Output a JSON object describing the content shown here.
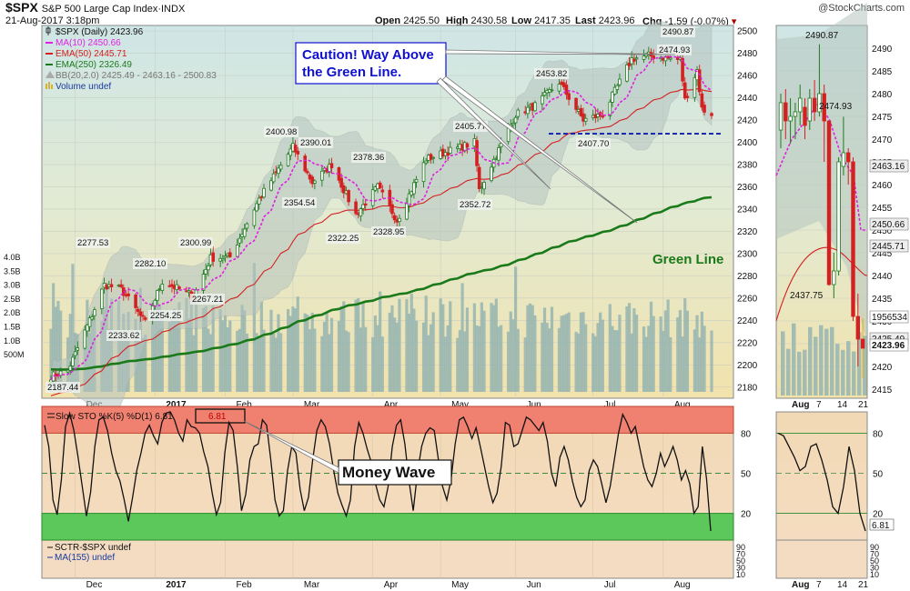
{
  "header": {
    "symbol": "$SPX",
    "name": "S&P 500 Large Cap Index",
    "exchange": "INDX",
    "date": "21-Aug-2017 3:18pm",
    "open_label": "Open",
    "open": "2425.50",
    "high_label": "High",
    "high": "2430.58",
    "low_label": "Low",
    "low": "2417.35",
    "last_label": "Last",
    "last": "2423.96",
    "chg_label": "Chg",
    "chg": "-1.59 (-0.07%)",
    "watermark": "@StockCharts.com"
  },
  "legend": {
    "price": "$SPX (Daily) 2423.96",
    "ma10": "MA(10) 2450.66",
    "ema50": "EMA(50) 2445.71",
    "ema250": "EMA(250) 2326.49",
    "bb": "BB(20,2.0) 2425.49 - 2463.16 - 2500.83",
    "volume": "Volume undef"
  },
  "annotations": {
    "caution_line1": "Caution! Way Above",
    "caution_line2": "the Green Line.",
    "green_line": "Green Line",
    "money_wave": "Money Wave"
  },
  "sto_legend": {
    "main": "Slow STO %K(5) %D(1) 6.81",
    "box": "6.81"
  },
  "sctr_legend": {
    "sctr": "SCTR-$SPX undef",
    "ma": "MA(155) undef"
  },
  "colors": {
    "up": "#1f7a1f",
    "down": "#d42020",
    "ma10": "#e020e0",
    "ema50": "#d42020",
    "ema250": "#1a7a1a",
    "bb_fill": "#b5c4c0",
    "overbought": "#f08070",
    "oversold": "#5cc85c",
    "annotation_blue": "#1010d0",
    "annotation_green": "#1a7a1a"
  },
  "chart_data": [
    {
      "type": "candlestick",
      "title": "$SPX S&P 500 Large Cap Index INDX",
      "ylim": [
        2170,
        2505
      ],
      "y_ticks": [
        2180,
        2200,
        2220,
        2240,
        2260,
        2280,
        2300,
        2320,
        2340,
        2360,
        2380,
        2400,
        2420,
        2440,
        2460,
        2480,
        2500
      ],
      "x_labels": [
        "Dec",
        "2017",
        "Feb",
        "Mar",
        "Apr",
        "May",
        "Jun",
        "Jul",
        "Aug"
      ],
      "volume_ticks": [
        "4.0B",
        "3.5B",
        "3.0B",
        "2.5B",
        "2.0B",
        "1.5B",
        "1.0B",
        "500M"
      ],
      "price_labels": [
        {
          "value": "2187.44"
        },
        {
          "value": "2277.53"
        },
        {
          "value": "2233.62"
        },
        {
          "value": "2282.10"
        },
        {
          "value": "2254.25"
        },
        {
          "value": "2300.99"
        },
        {
          "value": "2267.21"
        },
        {
          "value": "2400.98"
        },
        {
          "value": "2390.01"
        },
        {
          "value": "2354.54"
        },
        {
          "value": "2378.36"
        },
        {
          "value": "2322.25"
        },
        {
          "value": "2328.95"
        },
        {
          "value": "2405.77"
        },
        {
          "value": "2352.72"
        },
        {
          "value": "2453.82"
        },
        {
          "value": "2407.70"
        },
        {
          "value": "2490.87"
        },
        {
          "value": "2474.93"
        }
      ],
      "anchors": [
        {
          "date": "2016-11-21",
          "close": 2190
        },
        {
          "date": "2016-11-28",
          "close": 2195
        },
        {
          "date": "2016-12-08",
          "close": 2245
        },
        {
          "date": "2016-12-13",
          "close": 2272
        },
        {
          "date": "2016-12-20",
          "close": 2268
        },
        {
          "date": "2016-12-30",
          "close": 2238
        },
        {
          "date": "2017-01-06",
          "close": 2275
        },
        {
          "date": "2017-01-19",
          "close": 2262
        },
        {
          "date": "2017-01-26",
          "close": 2296
        },
        {
          "date": "2017-02-03",
          "close": 2297
        },
        {
          "date": "2017-02-15",
          "close": 2349
        },
        {
          "date": "2017-03-01",
          "close": 2396
        },
        {
          "date": "2017-03-09",
          "close": 2364
        },
        {
          "date": "2017-03-17",
          "close": 2380
        },
        {
          "date": "2017-03-27",
          "close": 2335
        },
        {
          "date": "2017-04-05",
          "close": 2360
        },
        {
          "date": "2017-04-13",
          "close": 2330
        },
        {
          "date": "2017-04-25",
          "close": 2385
        },
        {
          "date": "2017-05-15",
          "close": 2400
        },
        {
          "date": "2017-05-17",
          "close": 2357
        },
        {
          "date": "2017-06-01",
          "close": 2425
        },
        {
          "date": "2017-06-09",
          "close": 2433
        },
        {
          "date": "2017-06-19",
          "close": 2454
        },
        {
          "date": "2017-06-29",
          "close": 2420
        },
        {
          "date": "2017-07-07",
          "close": 2425
        },
        {
          "date": "2017-07-19",
          "close": 2475
        },
        {
          "date": "2017-07-26",
          "close": 2478
        },
        {
          "date": "2017-08-08",
          "close": 2474
        },
        {
          "date": "2017-08-10",
          "close": 2438
        },
        {
          "date": "2017-08-15",
          "close": 2465
        },
        {
          "date": "2017-08-17",
          "close": 2430
        },
        {
          "date": "2017-08-21",
          "close": 2424
        }
      ],
      "series": [
        {
          "name": "MA(10)",
          "last": 2450.66
        },
        {
          "name": "EMA(50)",
          "last": 2445.71
        },
        {
          "name": "EMA(250)",
          "last": 2326.49,
          "start": 2196
        },
        {
          "name": "BB(20,2.0)",
          "lower": 2425.49,
          "mid": 2463.16,
          "upper": 2500.83
        }
      ],
      "support_line": 2407.7
    },
    {
      "type": "line",
      "title": "Slow STO %K(5) %D(1)",
      "ylim": [
        0,
        100
      ],
      "y_ticks": [
        80,
        50,
        20
      ],
      "overbought": 80,
      "oversold": 20,
      "last": 6.81,
      "pattern": [
        86,
        70,
        30,
        19,
        45,
        85,
        95,
        82,
        62,
        40,
        18,
        36,
        70,
        90,
        92,
        82,
        65,
        52,
        44,
        30,
        14,
        32,
        52,
        65,
        80,
        86,
        78,
        72,
        88,
        95,
        96,
        90,
        80,
        74,
        90,
        85,
        84,
        80,
        66,
        55,
        35,
        19,
        28,
        65,
        88,
        82,
        55,
        22,
        34,
        60,
        70,
        72,
        90,
        86,
        60,
        30,
        18,
        22,
        52,
        70,
        65,
        38,
        22,
        32,
        60,
        82,
        90,
        85,
        72,
        52,
        35,
        26,
        18,
        30,
        70,
        88,
        80,
        68,
        58,
        42,
        30,
        25,
        40,
        70,
        86,
        90,
        72,
        44,
        22,
        50,
        70,
        80,
        84,
        82,
        60,
        40,
        30,
        45,
        72,
        90,
        92,
        85,
        76,
        84,
        70,
        55,
        40,
        28,
        35,
        55,
        88,
        86,
        70,
        72,
        82,
        92,
        90,
        86,
        82,
        88,
        74,
        50,
        40,
        62,
        70,
        60,
        44,
        32,
        25,
        30,
        52,
        60,
        55,
        42,
        28,
        40,
        60,
        80,
        94,
        88,
        80,
        85,
        70,
        55,
        45,
        40,
        50,
        65,
        55,
        62,
        70,
        60,
        45,
        52,
        42,
        20,
        25,
        70,
        46,
        6.81
      ]
    },
    {
      "type": "line",
      "title": "SCTR-$SPX",
      "y_ticks": [
        90,
        70,
        50,
        30,
        10
      ]
    }
  ],
  "zoom_panel": {
    "x_labels": [
      "Aug",
      "7",
      "14",
      "21"
    ],
    "y_ticks": [
      2415,
      2420,
      2425,
      2430,
      2435,
      2440,
      2445,
      2450,
      2455,
      2460,
      2465,
      2470,
      2475,
      2480,
      2485,
      2490
    ],
    "value_tags": [
      "2463.16",
      "2450.66",
      "2445.71",
      "1956534",
      "2425.49",
      "2423.96"
    ],
    "price_labels": [
      "2490.87",
      "2474.93",
      "2437.75"
    ],
    "sto_ticks": [
      "80",
      "50",
      "20"
    ],
    "sto_tag": "6.81",
    "sctr_ticks": [
      "90",
      "70",
      "50",
      "30",
      "10"
    ]
  }
}
